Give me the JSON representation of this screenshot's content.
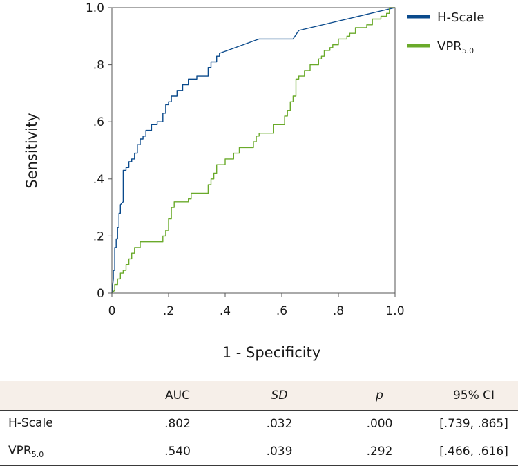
{
  "chart_data": {
    "type": "line",
    "xlabel": "1 - Specificity",
    "ylabel": "Sensitivity",
    "xlim": [
      0,
      1
    ],
    "ylim": [
      0,
      1
    ],
    "x_ticks": [
      "0",
      ".2",
      ".4",
      ".6",
      ".8",
      "1.0"
    ],
    "y_ticks": [
      "0",
      ".2",
      ".4",
      ".6",
      ".8",
      "1.0"
    ],
    "legend_position": "top-right",
    "series": [
      {
        "name": "H-Scale",
        "name_main": "H-Scale",
        "name_sub": "",
        "color": "#0a4a8c",
        "x": [
          0,
          0.005,
          0.005,
          0.01,
          0.01,
          0.015,
          0.015,
          0.02,
          0.02,
          0.025,
          0.025,
          0.03,
          0.03,
          0.04,
          0.04,
          0.05,
          0.05,
          0.06,
          0.06,
          0.07,
          0.07,
          0.08,
          0.08,
          0.09,
          0.09,
          0.1,
          0.1,
          0.11,
          0.11,
          0.12,
          0.12,
          0.14,
          0.14,
          0.16,
          0.16,
          0.18,
          0.18,
          0.19,
          0.19,
          0.2,
          0.2,
          0.21,
          0.21,
          0.23,
          0.23,
          0.25,
          0.25,
          0.27,
          0.27,
          0.3,
          0.3,
          0.34,
          0.34,
          0.35,
          0.35,
          0.37,
          0.37,
          0.38,
          0.38,
          0.52,
          0.64,
          0.66,
          1.0
        ],
        "y": [
          0,
          0.05,
          0.08,
          0.08,
          0.16,
          0.16,
          0.19,
          0.19,
          0.23,
          0.23,
          0.28,
          0.28,
          0.31,
          0.32,
          0.43,
          0.43,
          0.44,
          0.44,
          0.46,
          0.46,
          0.47,
          0.47,
          0.49,
          0.49,
          0.52,
          0.52,
          0.54,
          0.54,
          0.55,
          0.55,
          0.57,
          0.57,
          0.59,
          0.59,
          0.6,
          0.6,
          0.63,
          0.63,
          0.66,
          0.66,
          0.67,
          0.67,
          0.69,
          0.69,
          0.71,
          0.71,
          0.73,
          0.73,
          0.75,
          0.75,
          0.76,
          0.76,
          0.79,
          0.79,
          0.81,
          0.81,
          0.83,
          0.83,
          0.84,
          0.89,
          0.89,
          0.92,
          1.0
        ]
      },
      {
        "name": "VPR5.0",
        "name_main": "VPR",
        "name_sub": "5.0",
        "color": "#6aaa2a",
        "x": [
          0,
          0.01,
          0.01,
          0.02,
          0.02,
          0.03,
          0.03,
          0.04,
          0.04,
          0.05,
          0.05,
          0.06,
          0.06,
          0.07,
          0.07,
          0.08,
          0.08,
          0.1,
          0.1,
          0.18,
          0.18,
          0.19,
          0.19,
          0.2,
          0.2,
          0.21,
          0.21,
          0.22,
          0.22,
          0.27,
          0.27,
          0.28,
          0.28,
          0.34,
          0.34,
          0.35,
          0.35,
          0.36,
          0.36,
          0.37,
          0.37,
          0.4,
          0.4,
          0.43,
          0.43,
          0.45,
          0.45,
          0.5,
          0.5,
          0.51,
          0.51,
          0.52,
          0.52,
          0.57,
          0.57,
          0.61,
          0.61,
          0.62,
          0.62,
          0.63,
          0.63,
          0.64,
          0.64,
          0.65,
          0.65,
          0.66,
          0.66,
          0.68,
          0.68,
          0.7,
          0.7,
          0.73,
          0.73,
          0.74,
          0.74,
          0.75,
          0.75,
          0.77,
          0.77,
          0.78,
          0.78,
          0.8,
          0.8,
          0.83,
          0.83,
          0.84,
          0.84,
          0.86,
          0.86,
          0.9,
          0.9,
          0.92,
          0.92,
          0.95,
          0.95,
          0.97,
          0.97,
          0.98,
          0.98,
          1.0
        ],
        "y": [
          0,
          0.01,
          0.03,
          0.03,
          0.05,
          0.05,
          0.07,
          0.07,
          0.08,
          0.08,
          0.1,
          0.1,
          0.12,
          0.12,
          0.14,
          0.14,
          0.16,
          0.16,
          0.18,
          0.18,
          0.2,
          0.2,
          0.22,
          0.22,
          0.26,
          0.26,
          0.3,
          0.3,
          0.32,
          0.32,
          0.33,
          0.33,
          0.35,
          0.35,
          0.38,
          0.38,
          0.4,
          0.4,
          0.42,
          0.42,
          0.45,
          0.45,
          0.47,
          0.47,
          0.49,
          0.49,
          0.51,
          0.51,
          0.53,
          0.53,
          0.55,
          0.55,
          0.56,
          0.56,
          0.59,
          0.59,
          0.62,
          0.62,
          0.64,
          0.64,
          0.67,
          0.67,
          0.69,
          0.69,
          0.75,
          0.75,
          0.76,
          0.76,
          0.78,
          0.78,
          0.8,
          0.8,
          0.82,
          0.82,
          0.83,
          0.83,
          0.85,
          0.85,
          0.86,
          0.86,
          0.87,
          0.87,
          0.89,
          0.89,
          0.9,
          0.9,
          0.91,
          0.91,
          0.93,
          0.93,
          0.94,
          0.94,
          0.96,
          0.96,
          0.97,
          0.97,
          0.98,
          0.98,
          1.0,
          1.0
        ]
      }
    ]
  },
  "table": {
    "headers": {
      "auc": "AUC",
      "sd": "SD",
      "p": "p",
      "ci": "95% CI"
    },
    "rows": [
      {
        "label_main": "H-Scale",
        "label_sub": "",
        "auc": ".802",
        "sd": ".032",
        "p": ".000",
        "ci": "[.739, .865]"
      },
      {
        "label_main": "VPR",
        "label_sub": "5.0",
        "auc": ".540",
        "sd": ".039",
        "p": ".292",
        "ci": "[.466, .616]"
      }
    ]
  }
}
